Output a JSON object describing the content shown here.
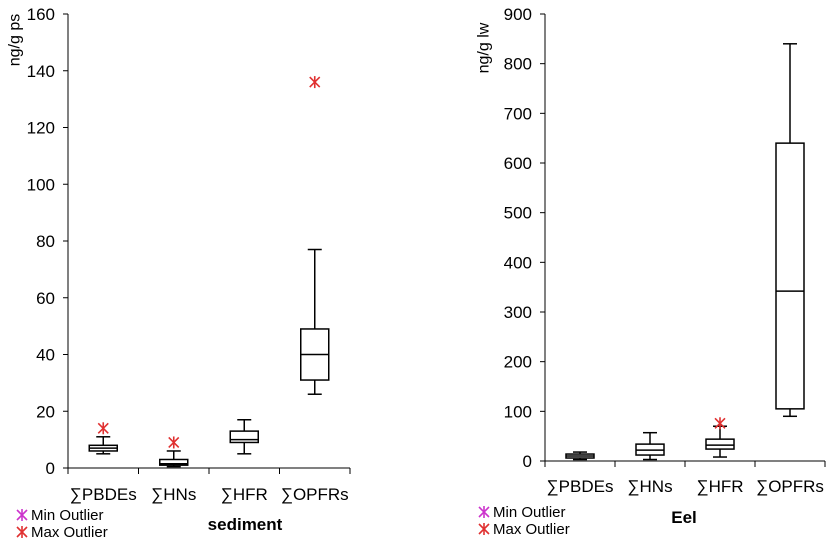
{
  "chart_data": [
    {
      "type": "box",
      "title": "sediment",
      "ylabel": "ng/g ps",
      "ylim": [
        0,
        160
      ],
      "yticks": [
        0,
        20,
        40,
        60,
        80,
        100,
        120,
        140,
        160
      ],
      "categories": [
        "∑PBDEs",
        "∑HNs",
        "∑HFR",
        "∑OPFRs"
      ],
      "boxes": [
        {
          "min": 5,
          "q1": 6,
          "median": 7,
          "q3": 8,
          "max": 11
        },
        {
          "min": 0.5,
          "q1": 1,
          "median": 1.5,
          "q3": 3,
          "max": 6
        },
        {
          "min": 5,
          "q1": 9,
          "median": 10,
          "q3": 13,
          "max": 17
        },
        {
          "min": 26,
          "q1": 31,
          "median": 40,
          "q3": 49,
          "max": 77
        }
      ],
      "max_outliers": [
        14,
        9,
        null,
        136
      ],
      "min_outliers": [
        null,
        null,
        null,
        null
      ],
      "legend": {
        "min_label": "Min Outlier",
        "max_label": "Max Outlier",
        "min_color": "#cc33cc",
        "max_color": "#e03030"
      }
    },
    {
      "type": "box",
      "title": "Eel",
      "ylabel": "ng/g lw",
      "ylim": [
        0,
        900
      ],
      "yticks": [
        0,
        100,
        200,
        300,
        400,
        500,
        600,
        700,
        800,
        900
      ],
      "categories": [
        "∑PBDEs",
        "∑HNs",
        "∑HFR",
        "∑OPFRs"
      ],
      "boxes": [
        {
          "min": 3,
          "q1": 6,
          "median": 10,
          "q3": 14,
          "max": 18
        },
        {
          "min": 3,
          "q1": 12,
          "median": 22,
          "q3": 34,
          "max": 57
        },
        {
          "min": 8,
          "q1": 24,
          "median": 32,
          "q3": 44,
          "max": 70
        },
        {
          "min": 90,
          "q1": 105,
          "median": 342,
          "q3": 640,
          "max": 840
        }
      ],
      "max_outliers": [
        null,
        null,
        76,
        null
      ],
      "min_outliers": [
        null,
        null,
        null,
        null
      ],
      "legend": {
        "min_label": "Min Outlier",
        "max_label": "Max Outlier",
        "min_color": "#cc33cc",
        "max_color": "#e03030"
      }
    }
  ]
}
